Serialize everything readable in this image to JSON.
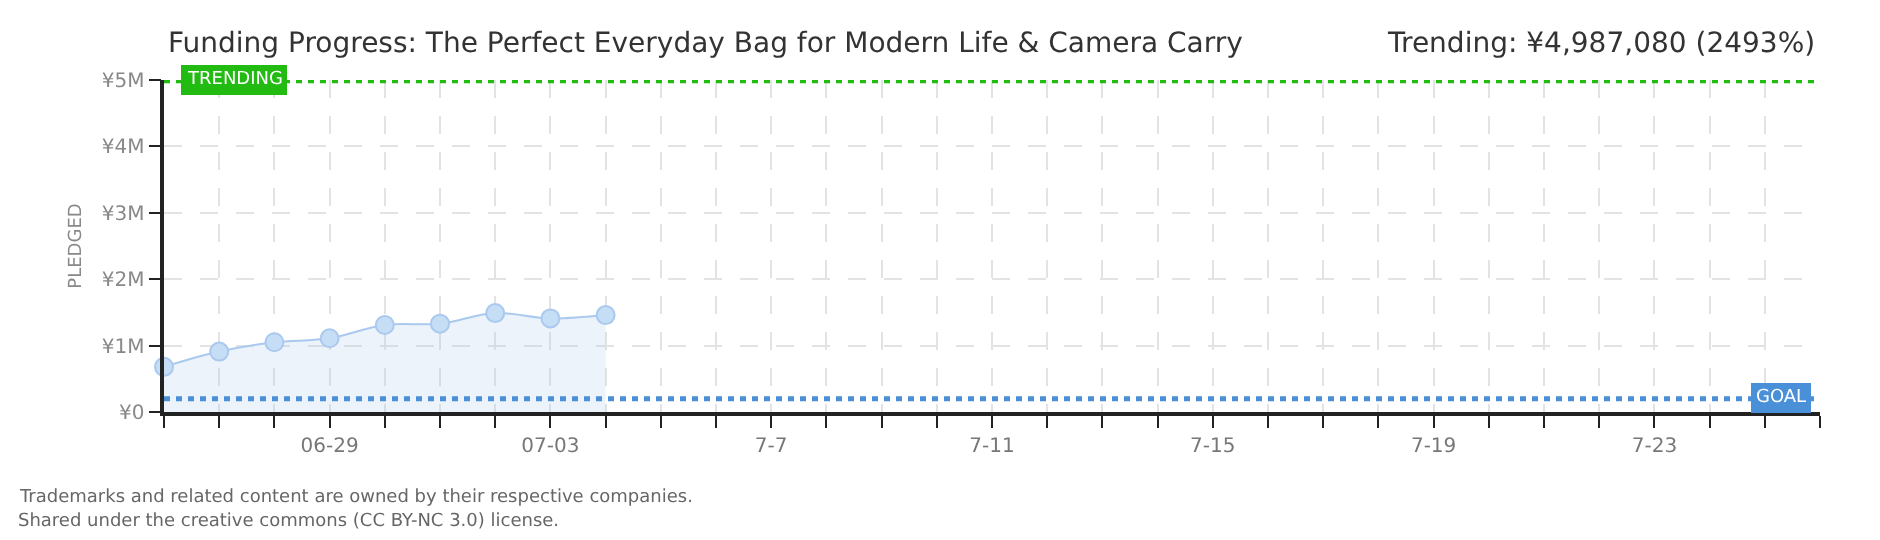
{
  "chart_data": {
    "type": "area",
    "title": "Funding Progress: The Perfect Everyday Bag for Modern Life & Camera Carry",
    "subtitle": "Trending: ¥4,987,080 (2493%)",
    "ylabel": "PLEDGED",
    "x": [
      "--06-26",
      "--06-27",
      "--06-28",
      "--06-29",
      "--06-30",
      "--07-01",
      "--07-02",
      "--07-03",
      "--07-04"
    ],
    "series": [
      {
        "color": "#a9c9ee",
        "values": [
          680000,
          910000,
          1050000,
          1110000,
          1310000,
          1330000,
          1490000,
          1410000,
          1460000
        ]
      }
    ],
    "marker": "circle",
    "grid": true,
    "xlim": [
      "--06-26",
      "--07-26"
    ],
    "xticks": [
      {
        "value": "--06-26",
        "label": null
      },
      {
        "value": "--06-27",
        "label": null
      },
      {
        "value": "--06-28",
        "label": null
      },
      {
        "value": "--06-29",
        "label": "06-29"
      },
      {
        "value": "--06-30",
        "label": null
      },
      {
        "value": "--07-01",
        "label": null
      },
      {
        "value": "--07-02",
        "label": null
      },
      {
        "value": "--07-03",
        "label": "07-03"
      },
      {
        "value": "--07-04",
        "label": null
      },
      {
        "value": "--07-05",
        "label": null
      },
      {
        "value": "--07-06",
        "label": null
      },
      {
        "value": "--07-07",
        "label": "7-7"
      },
      {
        "value": "--07-08",
        "label": null
      },
      {
        "value": "--07-09",
        "label": null
      },
      {
        "value": "--07-10",
        "label": null
      },
      {
        "value": "--07-11",
        "label": "7-11"
      },
      {
        "value": "--07-12",
        "label": null
      },
      {
        "value": "--07-13",
        "label": null
      },
      {
        "value": "--07-14",
        "label": null
      },
      {
        "value": "--07-15",
        "label": "7-15"
      },
      {
        "value": "--07-16",
        "label": null
      },
      {
        "value": "--07-17",
        "label": null
      },
      {
        "value": "--07-18",
        "label": null
      },
      {
        "value": "--07-19",
        "label": "7-19"
      },
      {
        "value": "--07-20",
        "label": null
      },
      {
        "value": "--07-21",
        "label": null
      },
      {
        "value": "--07-22",
        "label": null
      },
      {
        "value": "--07-23",
        "label": "7-23"
      },
      {
        "value": "--07-24",
        "label": null
      },
      {
        "value": "--07-25",
        "label": null
      },
      {
        "value": "--07-26",
        "label": null
      }
    ],
    "ylim": [
      0,
      5000000
    ],
    "yticks": [
      {
        "value": 0,
        "label": "¥0"
      },
      {
        "value": 1000000,
        "label": "¥1M"
      },
      {
        "value": 2000000,
        "label": "¥2M"
      },
      {
        "value": 3000000,
        "label": "¥3M"
      },
      {
        "value": 4000000,
        "label": "¥4M"
      },
      {
        "value": 5000000,
        "label": "¥5M"
      }
    ],
    "ref_lines": [
      {
        "axis": "y",
        "value": 4987080,
        "label": "TRENDING",
        "color": "#22bb11",
        "line_style": "dotted"
      },
      {
        "axis": "y",
        "value": 200000,
        "label": "GOAL",
        "color": "#4a90d9",
        "line_style": "dotted"
      }
    ],
    "annotations": [
      "Trademarks and related content are owned by their respective companies.",
      "Shared under the creative commons (CC BY-NC 3.0) license."
    ]
  }
}
